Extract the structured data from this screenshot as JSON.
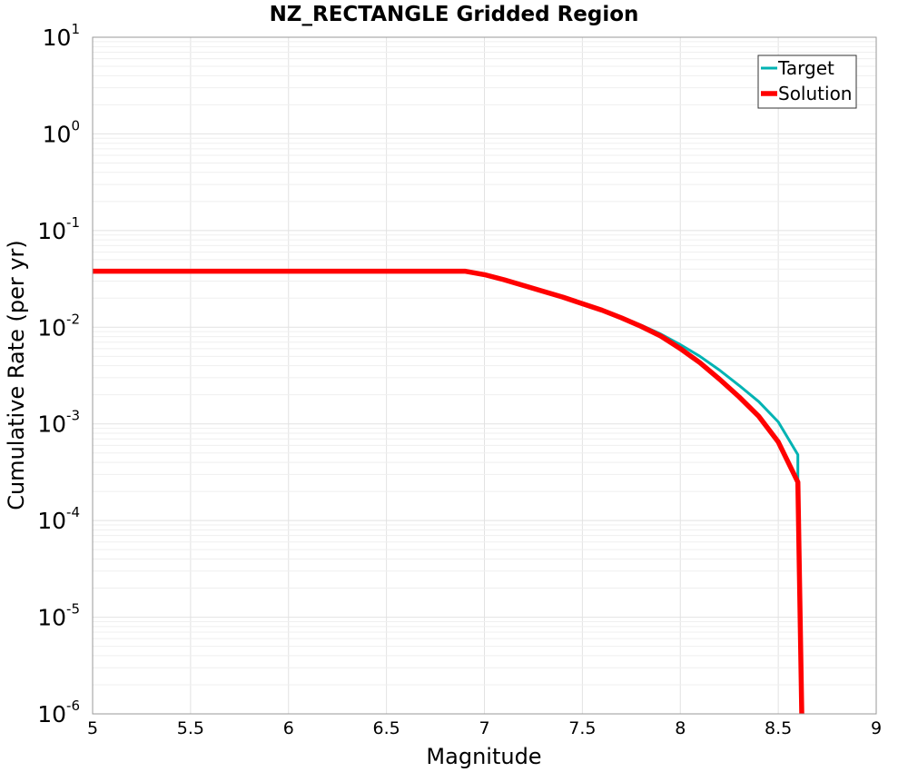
{
  "chart_data": {
    "type": "line",
    "title": "NZ_RECTANGLE Gridded Region",
    "xlabel": "Magnitude",
    "ylabel": "Cumulative Rate (per yr)",
    "xlim": [
      5,
      9
    ],
    "ylim": [
      1e-06,
      10
    ],
    "yscale": "log",
    "grid": true,
    "legend_position": "top-right",
    "x_ticks": [
      "5",
      "5.5",
      "6",
      "6.5",
      "7",
      "7.5",
      "8",
      "8.5",
      "9"
    ],
    "y_tick_base": "10",
    "y_tick_exponents": [
      "1",
      "0",
      "-1",
      "-2",
      "-3",
      "-4",
      "-5",
      "-6"
    ],
    "series": [
      {
        "name": "Target",
        "color": "#00b3b3",
        "x": [
          5.0,
          6.9,
          7.0,
          7.1,
          7.2,
          7.3,
          7.4,
          7.5,
          7.6,
          7.7,
          7.8,
          7.9,
          8.0,
          8.1,
          8.2,
          8.3,
          8.4,
          8.5,
          8.6,
          8.6
        ],
        "y": [
          0.038,
          0.038,
          0.035,
          0.031,
          0.027,
          0.0235,
          0.0205,
          0.0175,
          0.015,
          0.0127,
          0.0105,
          0.0085,
          0.0066,
          0.005,
          0.0036,
          0.0025,
          0.0017,
          0.00105,
          0.00048,
          0.00025
        ]
      },
      {
        "name": "Solution",
        "color": "#ff0000",
        "x": [
          5.0,
          6.9,
          7.0,
          7.1,
          7.2,
          7.3,
          7.4,
          7.5,
          7.6,
          7.7,
          7.8,
          7.9,
          8.0,
          8.1,
          8.2,
          8.3,
          8.4,
          8.5,
          8.6,
          8.62
        ],
        "y": [
          0.038,
          0.038,
          0.035,
          0.031,
          0.027,
          0.0235,
          0.0205,
          0.0175,
          0.015,
          0.0125,
          0.0102,
          0.0081,
          0.006,
          0.0043,
          0.0029,
          0.0019,
          0.0012,
          0.00065,
          0.00025,
          1e-06
        ]
      }
    ]
  }
}
